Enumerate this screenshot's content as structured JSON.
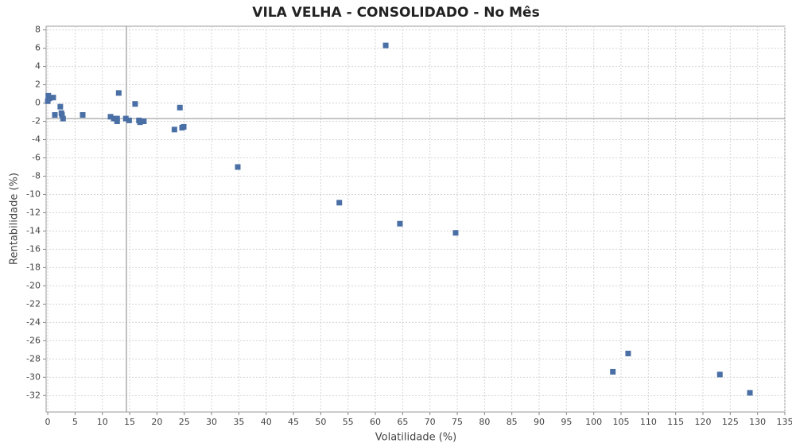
{
  "chart_data": {
    "type": "scatter",
    "title": "VILA VELHA - CONSOLIDADO - No Mês",
    "x_label": "Volatilidade (%)",
    "y_label": "Rentabilidade (%)",
    "color": "#4a6fa5",
    "grid": true,
    "x": [
      0,
      0.1,
      0.3,
      1.0,
      1.3,
      2.3,
      2.5,
      2.6,
      2.8,
      6.4,
      11.5,
      12.1,
      12.7,
      12.7,
      13.0,
      14.3,
      14.9,
      16.0,
      16.7,
      16.9,
      17.6,
      23.2,
      24.2,
      24.6,
      24.9,
      34.8,
      53.4,
      61.9,
      64.5,
      74.7,
      103.5,
      106.3,
      123.1,
      128.6
    ],
    "values": [
      0.2,
      0.8,
      0.5,
      0.6,
      -1.3,
      -0.4,
      -1.1,
      -1.3,
      -1.7,
      -1.3,
      -1.5,
      -1.7,
      -1.7,
      -2.0,
      1.1,
      -1.7,
      -1.9,
      -0.1,
      -1.9,
      -2.1,
      -2.0,
      -2.9,
      -0.5,
      -2.7,
      -2.6,
      -7.0,
      -10.9,
      6.3,
      -13.2,
      -14.2,
      -29.4,
      -27.4,
      -29.7,
      -31.7
    ],
    "reference_lines": {
      "x": 14.4,
      "y": -1.7
    },
    "xlim": [
      -0.3,
      135
    ],
    "ylim": [
      -33.8,
      8.4
    ],
    "xticks": [
      0,
      5,
      10,
      15,
      20,
      25,
      30,
      35,
      40,
      45,
      50,
      55,
      60,
      65,
      70,
      75,
      80,
      85,
      90,
      95,
      100,
      105,
      110,
      115,
      120,
      125,
      130,
      135
    ],
    "yticks": [
      -32,
      -30,
      -28,
      -26,
      -24,
      -22,
      -20,
      -18,
      -16,
      -14,
      -12,
      -10,
      -8,
      -6,
      -4,
      -2,
      0,
      2,
      4,
      6,
      8
    ]
  }
}
